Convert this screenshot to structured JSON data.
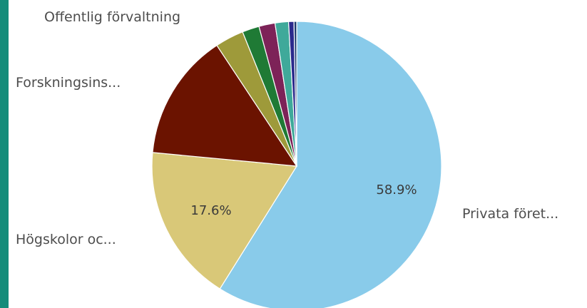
{
  "accent_color": "#138c7a",
  "chart_data": {
    "type": "pie",
    "categories": [
      "Privata föret...",
      "Högskolor oc...",
      "Forskningsins...",
      "",
      "",
      "",
      "",
      "",
      "Offentlig förvaltning"
    ],
    "values": [
      58.9,
      17.6,
      14.2,
      3.2,
      1.9,
      1.8,
      1.5,
      0.6,
      0.3
    ],
    "colors": [
      "#89cbea",
      "#d9c878",
      "#6b1300",
      "#9e9a3a",
      "#1f7a35",
      "#7d2358",
      "#3fa99a",
      "#2b2a8c",
      "#1d3b6e"
    ],
    "data_labels": [
      "58.9%",
      "17.6%",
      "",
      "",
      "",
      "",
      "",
      "",
      ""
    ]
  }
}
